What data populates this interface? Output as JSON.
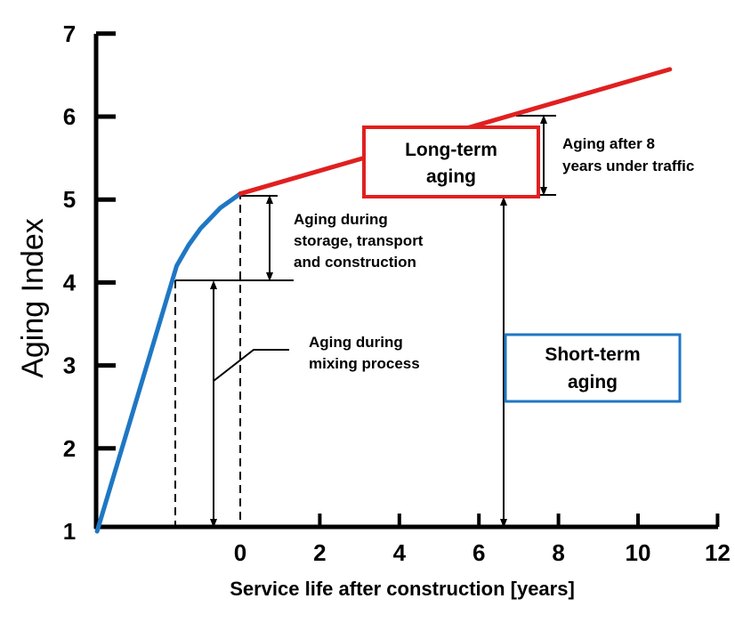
{
  "chart_data": {
    "type": "line",
    "title": "",
    "xlabel": "Service life after construction [years]",
    "ylabel": "Aging Index",
    "xlim": [
      -3.6,
      12
    ],
    "ylim": [
      1,
      7
    ],
    "x_ticks": [
      0,
      2,
      4,
      6,
      8,
      10,
      12
    ],
    "y_ticks": [
      1,
      2,
      3,
      4,
      5,
      6,
      7
    ],
    "grid": false,
    "series": [
      {
        "color": "#1f77c4",
        "points": [
          [
            -3.6,
            1.0
          ],
          [
            -2.6,
            2.6
          ],
          [
            -1.6,
            4.2
          ],
          [
            -1.3,
            4.45
          ],
          [
            -1.0,
            4.65
          ],
          [
            -0.5,
            4.9
          ],
          [
            0,
            5.07
          ]
        ]
      },
      {
        "color": "#e02020",
        "points": [
          [
            0,
            5.07
          ],
          [
            10.8,
            6.57
          ]
        ]
      }
    ],
    "annotations": {
      "storage": [
        "Aging during",
        "storage, transport",
        "and construction"
      ],
      "mixing": [
        "Aging during",
        "mixing process"
      ],
      "traffic": [
        "Aging after 8",
        "years under traffic"
      ],
      "long_term": [
        "Long-term",
        "aging"
      ],
      "short_term": [
        "Short-term",
        "aging"
      ]
    },
    "colors": {
      "long_term_box": "#e02020",
      "short_term_box": "#1f77c4",
      "axis": "#000000"
    }
  }
}
